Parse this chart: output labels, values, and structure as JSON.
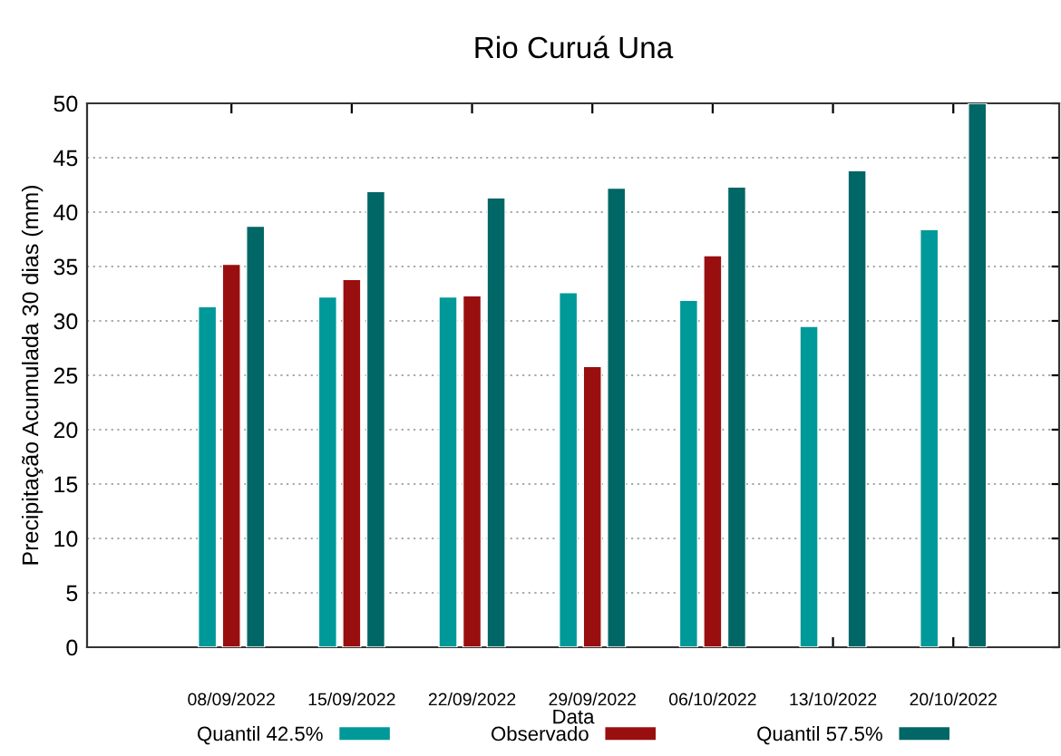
{
  "chart_data": {
    "type": "bar",
    "title": "Rio Curuá Una",
    "xlabel": "Data",
    "ylabel": "Precipitação Acumulada 30 dias (mm)",
    "categories": [
      "08/09/2022",
      "15/09/2022",
      "22/09/2022",
      "29/09/2022",
      "06/10/2022",
      "13/10/2022",
      "20/10/2022"
    ],
    "series": [
      {
        "name": "Quantil 42.5%",
        "color": "#009999",
        "values": [
          31.3,
          32.2,
          32.2,
          32.6,
          31.9,
          29.5,
          38.4
        ]
      },
      {
        "name": "Observado",
        "color": "#990f0f",
        "values": [
          35.2,
          33.8,
          32.3,
          25.8,
          36.0,
          null,
          null
        ]
      },
      {
        "name": "Quantil 57.5%",
        "color": "#006666",
        "values": [
          38.7,
          41.9,
          41.3,
          42.2,
          42.3,
          43.8,
          50
        ]
      }
    ],
    "ylim": [
      0,
      50
    ],
    "yticks": [
      0,
      5,
      10,
      15,
      20,
      25,
      30,
      35,
      40,
      45,
      50
    ],
    "grid": "y",
    "legend": "bottom"
  }
}
